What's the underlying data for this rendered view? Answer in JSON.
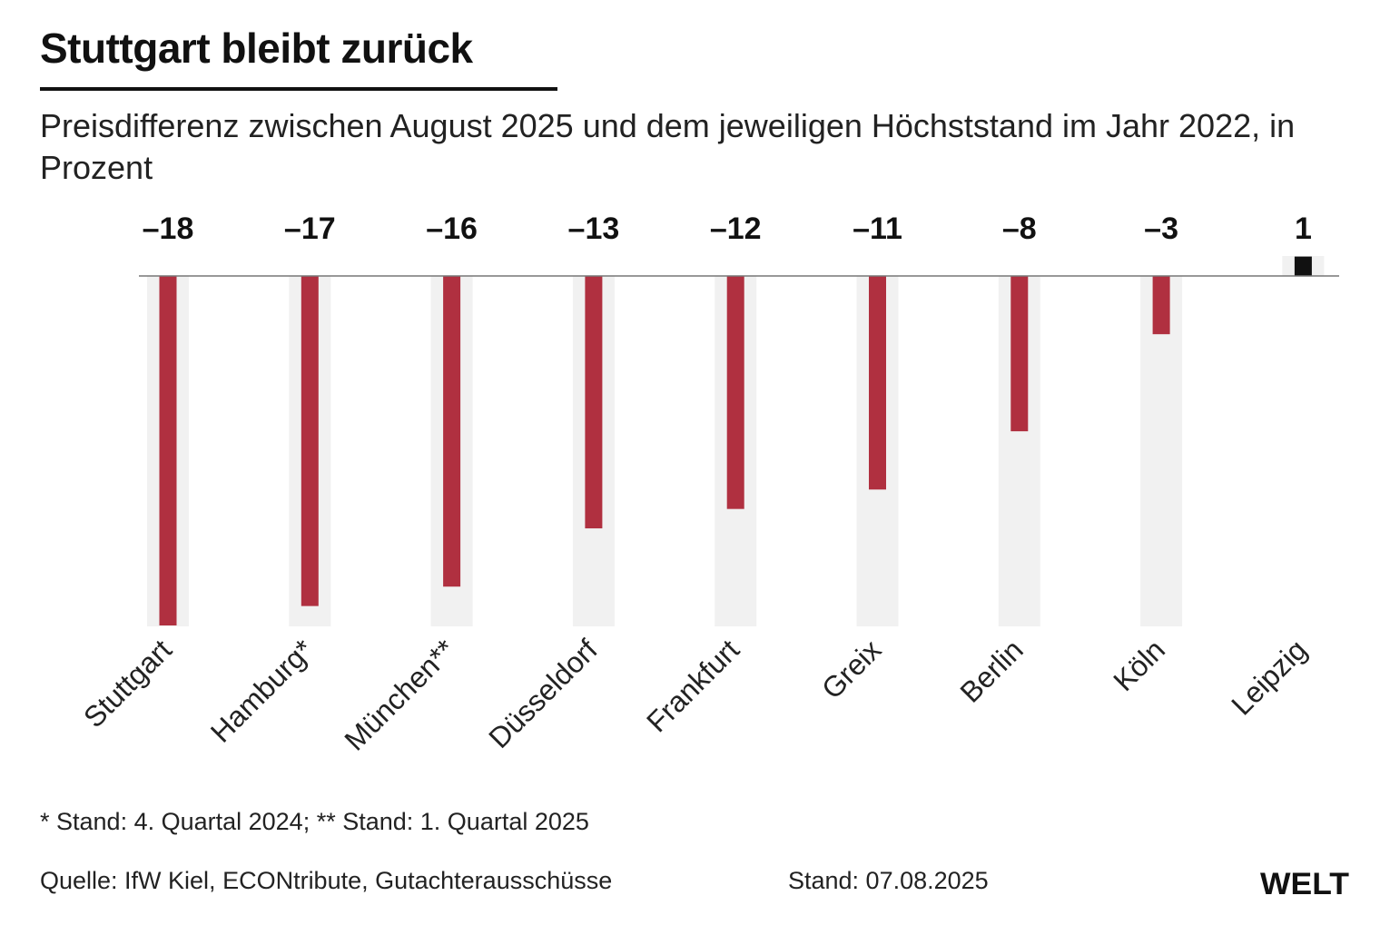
{
  "header": {
    "title": "Stuttgart bleibt zurück",
    "subtitle": "Preisdifferenz zwischen August 2025 und dem jeweiligen Höchststand im Jahr 2022, in Prozent"
  },
  "chart_data": {
    "type": "bar",
    "categories": [
      "Stuttgart",
      "Hamburg*",
      "München**",
      "Düsseldorf",
      "Frankfurt",
      "Greix",
      "Berlin",
      "Köln",
      "Leipzig"
    ],
    "values": [
      -18,
      -17,
      -16,
      -13,
      -12,
      -11,
      -8,
      -3,
      1
    ],
    "value_labels": [
      "–18",
      "–17",
      "–16",
      "–13",
      "–12",
      "–11",
      "–8",
      "–3",
      "1"
    ],
    "ylim": [
      -18,
      1
    ],
    "grid": false,
    "colors": {
      "negative": "#b03040",
      "positive": "#111111",
      "background_column": "#f1f1f1",
      "baseline": "#777777"
    }
  },
  "footer": {
    "footnote": "* Stand: 4. Quartal 2024; ** Stand: 1. Quartal 2025",
    "source": "Quelle: IfW Kiel, ECONtribute, Gutachterausschüsse",
    "date": "Stand: 07.08.2025",
    "logo": "WELT"
  }
}
